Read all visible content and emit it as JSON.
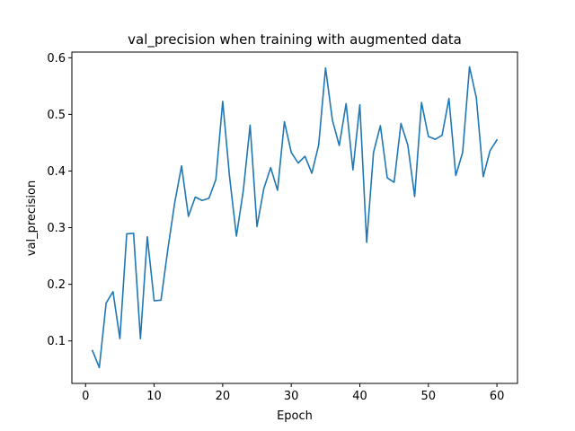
{
  "chart_data": {
    "type": "line",
    "title": "val_precision when training with augmented data",
    "xlabel": "Epoch",
    "ylabel": "val_precision",
    "xlim": [
      -2,
      63
    ],
    "ylim": [
      0.025,
      0.61
    ],
    "xticks": [
      0,
      10,
      20,
      30,
      40,
      50,
      60
    ],
    "yticks": [
      0.1,
      0.2,
      0.3,
      0.4,
      0.5,
      0.6
    ],
    "ytick_labels": [
      "0.1",
      "0.2",
      "0.3",
      "0.4",
      "0.5",
      "0.6"
    ],
    "grid": false,
    "line_color": "#1f77b4",
    "series": [
      {
        "x": [
          1,
          2,
          3,
          4,
          5,
          6,
          7,
          8,
          9,
          10,
          11,
          12,
          13,
          14,
          15,
          16,
          17,
          18,
          19,
          20,
          21,
          22,
          23,
          24,
          25,
          26,
          27,
          28,
          29,
          30,
          31,
          32,
          33,
          34,
          35,
          36,
          37,
          38,
          39,
          40,
          41,
          42,
          43,
          44,
          45,
          46,
          47,
          48,
          49,
          50,
          51,
          52,
          53,
          54,
          55,
          56,
          57,
          58,
          59,
          60
        ],
        "values": [
          0.083,
          0.053,
          0.167,
          0.187,
          0.104,
          0.289,
          0.29,
          0.104,
          0.284,
          0.171,
          0.172,
          0.262,
          0.344,
          0.409,
          0.32,
          0.354,
          0.348,
          0.352,
          0.385,
          0.523,
          0.39,
          0.285,
          0.365,
          0.481,
          0.302,
          0.369,
          0.406,
          0.366,
          0.487,
          0.433,
          0.414,
          0.426,
          0.396,
          0.446,
          0.582,
          0.49,
          0.445,
          0.519,
          0.402,
          0.517,
          0.274,
          0.433,
          0.48,
          0.388,
          0.38,
          0.484,
          0.446,
          0.355,
          0.521,
          0.461,
          0.456,
          0.463,
          0.528,
          0.392,
          0.433,
          0.584,
          0.529,
          0.39,
          0.436,
          0.455
        ]
      }
    ]
  }
}
